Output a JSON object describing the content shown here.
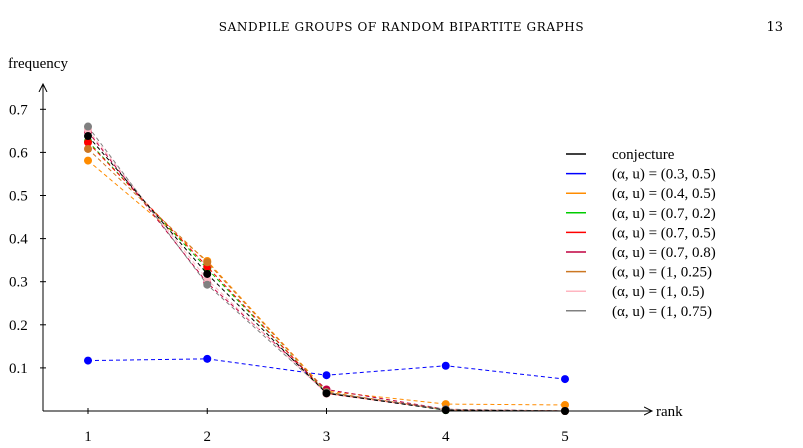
{
  "header": {
    "running_title": "SANDPILE GROUPS OF RANDOM BIPARTITE GRAPHS",
    "page_number": "13"
  },
  "chart_data": {
    "type": "line",
    "xlabel": "rank",
    "ylabel": "frequency",
    "x": [
      1,
      2,
      3,
      4,
      5
    ],
    "x_tick_labels": [
      "1",
      "2",
      "3",
      "4",
      "5"
    ],
    "y_ticks": [
      0.1,
      0.2,
      0.3,
      0.4,
      0.5,
      0.6,
      0.7
    ],
    "y_tick_labels": [
      "0.1",
      "0.2",
      "0.3",
      "0.4",
      "0.5",
      "0.6",
      "0.7"
    ],
    "ylim": [
      0,
      0.75
    ],
    "xlim": [
      0.6,
      5.6
    ],
    "grid": false,
    "legend_position": "right",
    "series": [
      {
        "name": "conjecture",
        "color": "#000000",
        "line_style": "dashed",
        "values": [
          0.638,
          0.318,
          0.041,
          0.002,
          0.0
        ]
      },
      {
        "name": "(α, u) = (0.3, 0.5)",
        "color": "#0000ff",
        "line_style": "dashed",
        "values": [
          0.117,
          0.121,
          0.083,
          0.105,
          0.074
        ]
      },
      {
        "name": "(α, u) = (0.4, 0.5)",
        "color": "#ff8c00",
        "line_style": "dashed",
        "values": [
          0.581,
          0.348,
          0.046,
          0.016,
          0.014
        ]
      },
      {
        "name": "(α, u) = (0.7, 0.2)",
        "color": "#00cc00",
        "line_style": "dashed",
        "values": [
          0.626,
          0.33,
          0.043,
          0.002,
          0.0
        ]
      },
      {
        "name": "(α, u) = (0.7, 0.5)",
        "color": "#ff0000",
        "line_style": "dashed",
        "values": [
          0.623,
          0.335,
          0.041,
          0.003,
          0.0
        ]
      },
      {
        "name": "(α, u) = (0.7, 0.8)",
        "color": "#c00040",
        "line_style": "dashed",
        "values": [
          0.648,
          0.297,
          0.05,
          0.004,
          0.0
        ]
      },
      {
        "name": "(α, u) = (1, 0.25)",
        "color": "#cc7722",
        "line_style": "dashed",
        "values": [
          0.608,
          0.345,
          0.044,
          0.003,
          0.0
        ]
      },
      {
        "name": "(α, u) = (1, 0.5)",
        "color": "#ffb6c1",
        "line_style": "dashed",
        "values": [
          0.652,
          0.305,
          0.04,
          0.003,
          0.0
        ]
      },
      {
        "name": "(α, u) = (1, 0.75)",
        "color": "#808080",
        "line_style": "dashed",
        "values": [
          0.66,
          0.293,
          0.043,
          0.004,
          0.0
        ]
      }
    ]
  }
}
